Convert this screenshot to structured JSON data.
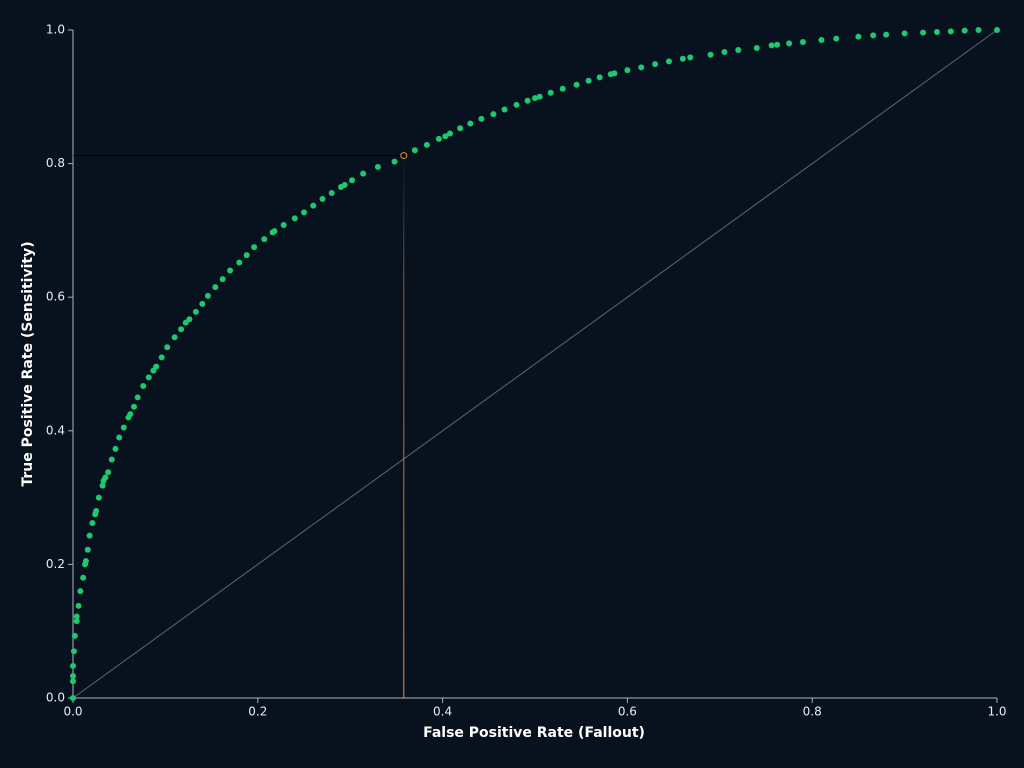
{
  "chart_data": {
    "type": "scatter",
    "x_label": "False Positive Rate (Fallout)",
    "y_label": "True Positive Rate (Sensitivity)",
    "color": "#1ec86e",
    "highlight_color": "#f0903c",
    "xlim": [
      0,
      1
    ],
    "ylim": [
      0,
      1
    ],
    "xticks": [
      {
        "value": 0,
        "label": "0.0"
      },
      0.2,
      0.4,
      0.6,
      0.8,
      {
        "value": 1,
        "label": "1.0"
      }
    ],
    "yticks": [
      {
        "value": 0,
        "label": "0.0"
      },
      0.2,
      0.4,
      0.6,
      0.8,
      {
        "value": 1,
        "label": "1.0"
      }
    ],
    "x": [
      0,
      0,
      0,
      0,
      0.001,
      0.002,
      0.004,
      0.004,
      0.006,
      0.008,
      0.011,
      0.013,
      0.014,
      0.016,
      0.018,
      0.021,
      0.024,
      0.025,
      0.028,
      0.032,
      0.033,
      0.035,
      0.038,
      0.042,
      0.046,
      0.05,
      0.055,
      0.06,
      0.062,
      0.066,
      0.07,
      0.076,
      0.082,
      0.087,
      0.09,
      0.096,
      0.102,
      0.11,
      0.117,
      0.122,
      0.126,
      0.133,
      0.14,
      0.146,
      0.154,
      0.162,
      0.17,
      0.18,
      0.188,
      0.196,
      0.207,
      0.216,
      0.218,
      0.228,
      0.24,
      0.25,
      0.26,
      0.27,
      0.28,
      0.29,
      0.294,
      0.302,
      0.314,
      0.33,
      0.348,
      0.37,
      0.383,
      0.396,
      0.403,
      0.408,
      0.419,
      0.43,
      0.442,
      0.455,
      0.467,
      0.48,
      0.492,
      0.5,
      0.505,
      0.517,
      0.53,
      0.545,
      0.558,
      0.57,
      0.582,
      0.586,
      0.6,
      0.615,
      0.63,
      0.645,
      0.66,
      0.668,
      0.69,
      0.705,
      0.72,
      0.74,
      0.756,
      0.762,
      0.775,
      0.79,
      0.81,
      0.826,
      0.85,
      0.866,
      0.88,
      0.9,
      0.92,
      0.935,
      0.95,
      0.965,
      0.98,
      1
    ],
    "values": [
      0,
      0.025,
      0.033,
      0.048,
      0.07,
      0.093,
      0.115,
      0.122,
      0.138,
      0.16,
      0.18,
      0.2,
      0.205,
      0.222,
      0.243,
      0.262,
      0.275,
      0.28,
      0.3,
      0.318,
      0.325,
      0.33,
      0.338,
      0.357,
      0.373,
      0.39,
      0.405,
      0.42,
      0.425,
      0.436,
      0.45,
      0.467,
      0.48,
      0.49,
      0.496,
      0.51,
      0.525,
      0.54,
      0.552,
      0.562,
      0.567,
      0.578,
      0.59,
      0.602,
      0.615,
      0.627,
      0.64,
      0.652,
      0.663,
      0.675,
      0.687,
      0.697,
      0.699,
      0.708,
      0.718,
      0.727,
      0.737,
      0.747,
      0.756,
      0.765,
      0.768,
      0.775,
      0.785,
      0.795,
      0.803,
      0.82,
      0.828,
      0.837,
      0.841,
      0.845,
      0.853,
      0.86,
      0.867,
      0.874,
      0.881,
      0.888,
      0.894,
      0.898,
      0.9,
      0.906,
      0.912,
      0.918,
      0.924,
      0.929,
      0.934,
      0.935,
      0.94,
      0.944,
      0.949,
      0.953,
      0.957,
      0.959,
      0.963,
      0.967,
      0.97,
      0.973,
      0.977,
      0.978,
      0.98,
      0.982,
      0.985,
      0.987,
      0.99,
      0.992,
      0.993,
      0.995,
      0.996,
      0.997,
      0.998,
      0.999,
      1.0,
      1
    ],
    "highlight": {
      "x": 0.358,
      "y": 0.812
    }
  }
}
